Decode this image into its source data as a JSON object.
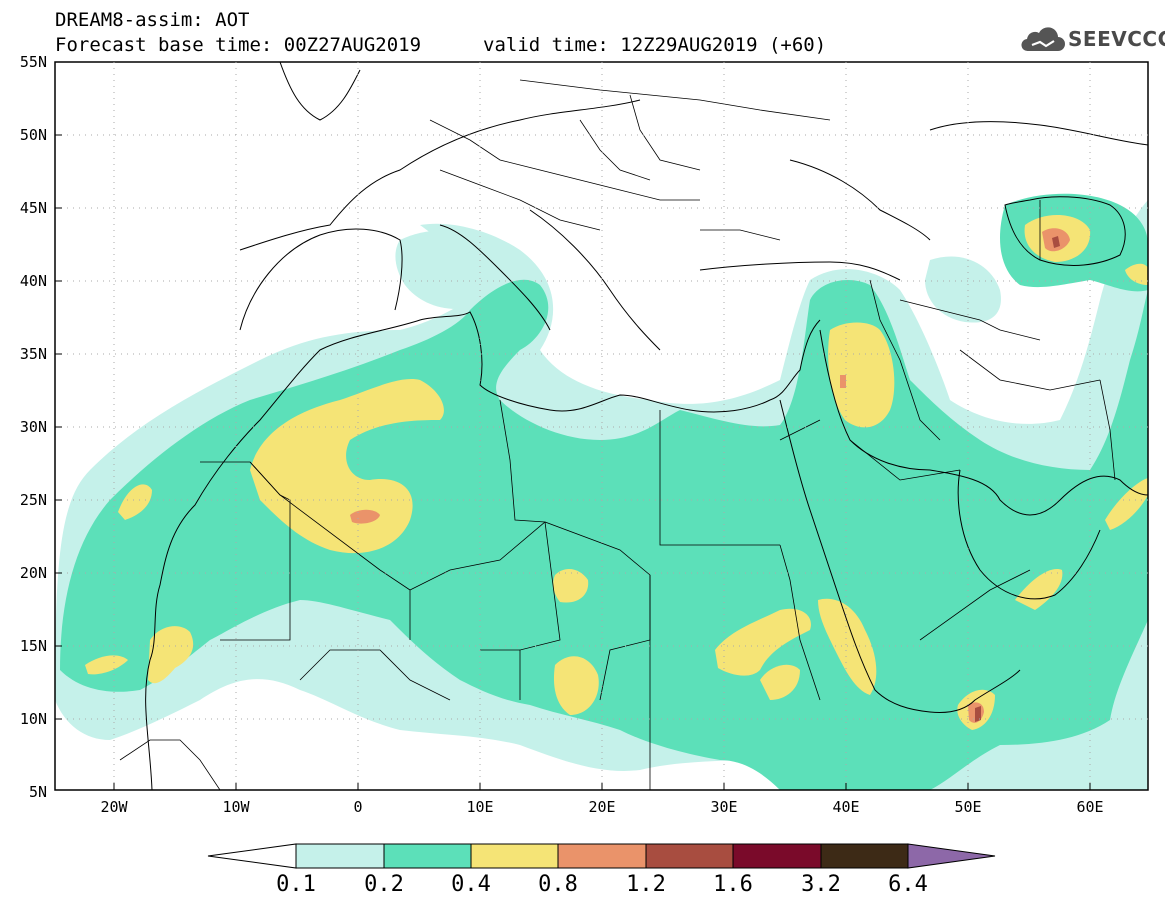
{
  "header": {
    "model_line": "DREAM8-assim: AOT",
    "base_time": "Forecast base time: 00Z27AUG2019",
    "valid_time": "valid time: 12Z29AUG2019 (+60)"
  },
  "logo": {
    "text": "SEEVCCC",
    "icon": "cloud-icon"
  },
  "map": {
    "lat_labels": [
      "55N",
      "50N",
      "45N",
      "40N",
      "35N",
      "30N",
      "25N",
      "20N",
      "15N",
      "10N",
      "5N"
    ],
    "lon_labels": [
      "20W",
      "10W",
      "0",
      "10E",
      "20E",
      "30E",
      "40E",
      "50E",
      "60E"
    ]
  },
  "legend": {
    "colors": [
      "#c5f1ea",
      "#5ce0b9",
      "#f5e476",
      "#ea936a",
      "#a84d40",
      "#7a0a2a",
      "#3d2a16",
      "#8d68a8"
    ],
    "labels": [
      "0.1",
      "0.2",
      "0.4",
      "0.8",
      "1.2",
      "1.6",
      "3.2",
      "6.4"
    ]
  }
}
